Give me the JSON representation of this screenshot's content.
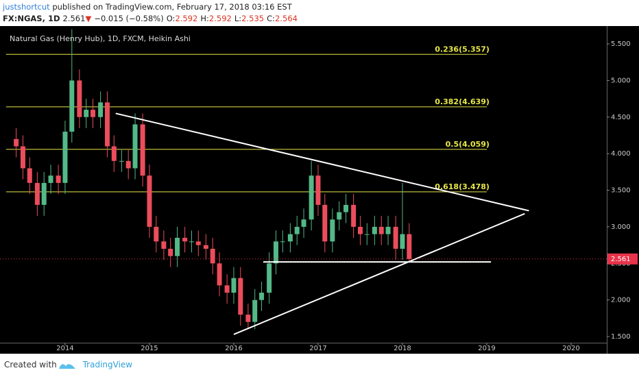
{
  "header": {
    "author": "justshortcut",
    "published": "published on TradingView.com, February 17, 2018 03:16 EST",
    "symbol": "FX:NGAS, 1D",
    "last": "2.561",
    "arrow": "▼",
    "change": "−0.015 (−0.58%)",
    "ohlc": [
      {
        "key": "O:",
        "value": "2.592"
      },
      {
        "key": "H:",
        "value": "2.592"
      },
      {
        "key": "L:",
        "value": "2.535"
      },
      {
        "key": "C:",
        "value": "2.564"
      }
    ]
  },
  "footer": {
    "created": "Created with",
    "brand": "TradingView"
  },
  "chart_data": {
    "type": "candlestick",
    "title": "Natural Gas (Henry Hub), 1D, FXCM, Heikin Ashi",
    "x": [
      2013.42,
      2013.5,
      2013.58,
      2013.67,
      2013.75,
      2013.83,
      2013.92,
      2014.0,
      2014.08,
      2014.17,
      2014.25,
      2014.33,
      2014.42,
      2014.5,
      2014.58,
      2014.67,
      2014.75,
      2014.83,
      2014.92,
      2015.0,
      2015.08,
      2015.17,
      2015.25,
      2015.33,
      2015.42,
      2015.5,
      2015.58,
      2015.67,
      2015.75,
      2015.83,
      2015.92,
      2016.0,
      2016.08,
      2016.17,
      2016.25,
      2016.33,
      2016.42,
      2016.5,
      2016.58,
      2016.67,
      2016.75,
      2016.83,
      2016.92,
      2017.0,
      2017.08,
      2017.17,
      2017.25,
      2017.33,
      2017.42,
      2017.5,
      2017.58,
      2017.67,
      2017.75,
      2017.83,
      2017.92,
      2018.0,
      2018.08
    ],
    "open": [
      4.2,
      4.1,
      3.8,
      3.6,
      3.3,
      3.6,
      3.7,
      3.6,
      4.3,
      5.0,
      4.5,
      4.6,
      4.5,
      4.7,
      4.1,
      3.9,
      3.9,
      3.8,
      4.4,
      3.7,
      3.0,
      2.8,
      2.7,
      2.6,
      2.85,
      2.8,
      2.8,
      2.75,
      2.7,
      2.5,
      2.2,
      2.1,
      2.3,
      1.8,
      1.7,
      2.0,
      2.1,
      2.5,
      2.8,
      2.8,
      2.9,
      3.0,
      3.1,
      3.7,
      3.3,
      2.8,
      3.1,
      3.2,
      3.3,
      3.0,
      2.9,
      2.9,
      3.0,
      2.9,
      3.0,
      2.7,
      2.9
    ],
    "high": [
      4.35,
      4.25,
      3.95,
      3.75,
      3.75,
      3.85,
      3.85,
      4.45,
      5.7,
      5.15,
      4.75,
      4.75,
      4.85,
      4.85,
      4.25,
      4.05,
      4.05,
      4.55,
      4.55,
      3.85,
      3.15,
      2.95,
      2.85,
      3.0,
      3.0,
      2.95,
      2.95,
      2.9,
      2.85,
      2.65,
      2.35,
      2.45,
      2.45,
      1.95,
      2.15,
      2.25,
      2.65,
      2.95,
      2.95,
      3.05,
      3.15,
      3.25,
      3.9,
      3.85,
      3.45,
      3.25,
      3.35,
      3.45,
      3.45,
      3.15,
      3.05,
      3.15,
      3.15,
      3.15,
      3.15,
      3.6,
      3.05
    ],
    "low": [
      3.95,
      3.65,
      3.45,
      3.15,
      3.15,
      3.45,
      3.45,
      3.45,
      4.15,
      4.35,
      4.35,
      4.35,
      4.35,
      3.95,
      3.75,
      3.75,
      3.65,
      3.65,
      3.55,
      2.85,
      2.65,
      2.55,
      2.45,
      2.45,
      2.65,
      2.65,
      2.6,
      2.55,
      2.35,
      2.05,
      1.95,
      1.95,
      1.65,
      1.6,
      1.6,
      1.85,
      1.95,
      2.35,
      2.65,
      2.65,
      2.75,
      2.85,
      2.95,
      3.15,
      2.65,
      2.65,
      2.95,
      3.05,
      2.85,
      2.75,
      2.75,
      2.75,
      2.75,
      2.75,
      2.55,
      2.55,
      2.53
    ],
    "close": [
      4.1,
      3.8,
      3.6,
      3.3,
      3.6,
      3.7,
      3.6,
      4.3,
      5.0,
      4.5,
      4.6,
      4.5,
      4.7,
      4.1,
      3.9,
      3.9,
      3.8,
      4.4,
      3.7,
      3.0,
      2.8,
      2.7,
      2.6,
      2.85,
      2.8,
      2.8,
      2.75,
      2.7,
      2.5,
      2.2,
      2.1,
      2.3,
      1.8,
      1.7,
      2.0,
      2.1,
      2.5,
      2.8,
      2.8,
      2.9,
      3.0,
      3.1,
      3.7,
      3.3,
      2.8,
      3.1,
      3.2,
      3.3,
      3.0,
      2.9,
      2.9,
      3.0,
      2.9,
      3.0,
      2.7,
      2.9,
      2.56
    ],
    "up_color": "#53b987",
    "down_color": "#eb4d5c",
    "xlim": [
      2013.228,
      2020.423
    ],
    "xticks": [
      2014,
      2015,
      2016,
      2017,
      2018,
      2019,
      2020
    ],
    "ylim": [
      1.416,
      5.725
    ],
    "yticks": [
      {
        "value": 1.5,
        "label": "1.500"
      },
      {
        "value": 2.0,
        "label": "2.000"
      },
      {
        "value": 2.5,
        "label": "2.500"
      },
      {
        "value": 3.0,
        "label": "3.000"
      },
      {
        "value": 3.5,
        "label": "3.500"
      },
      {
        "value": 4.0,
        "label": "4.000"
      },
      {
        "value": 4.5,
        "label": "4.500"
      },
      {
        "value": 5.0,
        "label": "5.000"
      },
      {
        "value": 5.5,
        "label": "5.500"
      }
    ],
    "fib_levels": [
      {
        "label": "0.236(5.357)",
        "value": 5.357
      },
      {
        "label": "0.382(4.639)",
        "value": 4.639
      },
      {
        "label": "0.5(4.059)",
        "value": 4.059
      },
      {
        "label": "0.618(3.478)",
        "value": 3.478
      }
    ],
    "fib_range": [
      2013.3,
      2019.0
    ],
    "fib_color": "#e8e84a",
    "trendlines": [
      {
        "x": [
          2014.6,
          2019.5
        ],
        "y": [
          4.55,
          3.22
        ]
      },
      {
        "x": [
          2016.0,
          2019.45
        ],
        "y": [
          1.53,
          3.18
        ]
      },
      {
        "x": [
          2016.35,
          2019.05
        ],
        "y": [
          2.52,
          2.52
        ]
      }
    ],
    "last_price": 2.561,
    "last_color": "#e8334a"
  }
}
